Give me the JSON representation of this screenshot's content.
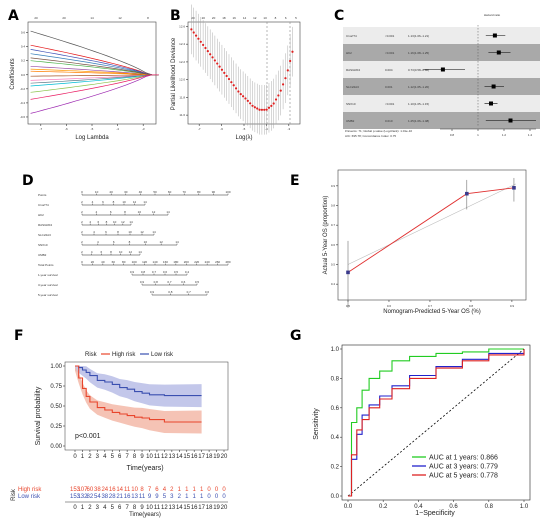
{
  "panels": {
    "A": {
      "label": "A",
      "xlabel": "Log Lambda",
      "ylabel": "Coefficients",
      "top_ticks": [
        "20",
        "20",
        "14",
        "12",
        "8"
      ],
      "x_ticks": [
        "-7",
        "-6",
        "-5",
        "-4",
        "-3"
      ],
      "y_ticks": [
        "0.6",
        "0.4",
        "0.2",
        "0.0",
        "-0.2",
        "-0.4",
        "-0.6"
      ]
    },
    "B": {
      "label": "B",
      "xlabel": "Log(λ)",
      "ylabel": "Partial Likelihood Deviance",
      "top_ticks": [
        "20",
        "20",
        "20",
        "18",
        "16",
        "14",
        "12",
        "10",
        "8",
        "6",
        "5"
      ],
      "x_ticks": [
        "-7",
        "-6",
        "-5",
        "-4",
        "-3"
      ],
      "y_ticks": [
        "12.6",
        "12.4",
        "12.2",
        "12.0",
        "11.8",
        "11.6"
      ]
    },
    "C": {
      "label": "C",
      "title": "Hazard ratio",
      "rows": [
        {
          "gene": "C1orf74",
          "p": "<0.001",
          "hr": "1.13(1.06–1.21)"
        },
        {
          "gene": "HK2",
          "p": "<0.001",
          "hr": "1.16(1.08–1.25)"
        },
        {
          "gene": "RASGRF2",
          "p": "0.004",
          "hr": "0.73(0.58–0.90)"
        },
        {
          "gene": "SLC22A3",
          "p": "0.001",
          "hr": "1.12(1.05–1.20)"
        },
        {
          "gene": "SNX10",
          "p": "<0.001",
          "hr": "1.10(1.05–1.15)"
        },
        {
          "gene": "UMB2",
          "p": "0.010",
          "hr": "1.25(1.06–1.48)"
        }
      ],
      "footer1": "# Events: 71; Global p-value (Log-Rank): 1.01e-10",
      "footer2": "AIC: 695.78; Concordance Index: 0.75",
      "x_ticks": [
        "0.8",
        "1",
        "1.2",
        "1.4"
      ]
    },
    "D": {
      "label": "D",
      "rows": [
        "Points",
        "C1orf74",
        "HK2",
        "RASGRF2",
        "SLC22A3",
        "SNX10",
        "UMB2",
        "Total Points",
        "1-year survival",
        "3-year survival",
        "5-year survival"
      ],
      "points_ticks": [
        "0",
        "10",
        "20",
        "30",
        "40",
        "50",
        "60",
        "70",
        "80",
        "90",
        "100"
      ],
      "total_ticks": [
        "0",
        "20",
        "40",
        "60",
        "80",
        "100",
        "120",
        "140",
        "160",
        "180",
        "200",
        "220",
        "240",
        "260",
        "280"
      ]
    },
    "E": {
      "label": "E",
      "xlabel": "Nomogram-Predicted 5-Year OS (%)",
      "ylabel": "Actual 5-Year OS (proportion)",
      "x_ticks": [
        "0.5",
        "0.6",
        "0.7",
        "0.8",
        "0.9"
      ],
      "y_ticks": [
        "0.4",
        "0.5",
        "0.6",
        "0.7",
        "0.8",
        "0.9"
      ]
    },
    "F": {
      "label": "F",
      "ylabel": "Survival probability",
      "xlabel": "Time(years)",
      "legend_title": "Risk",
      "legend_high": "High risk",
      "legend_low": "Low risk",
      "pval": "p<0.001",
      "x_ticks": [
        "0",
        "1",
        "2",
        "3",
        "4",
        "5",
        "6",
        "7",
        "8",
        "9",
        "10",
        "11",
        "12",
        "13",
        "14",
        "15",
        "16",
        "17",
        "18",
        "19",
        "20"
      ],
      "y_ticks": [
        "0.00",
        "0.25",
        "0.50",
        "0.75",
        "1.00"
      ],
      "risk_label": "Risk",
      "risk_high_label": "High risk",
      "risk_low_label": "Low risk",
      "risk_high": [
        "153",
        "107",
        "60",
        "38",
        "24",
        "16",
        "14",
        "11",
        "10",
        "8",
        "7",
        "6",
        "4",
        "2",
        "1",
        "1",
        "1",
        "1",
        "0",
        "0",
        "0"
      ],
      "risk_low": [
        "153",
        "132",
        "82",
        "54",
        "38",
        "28",
        "21",
        "16",
        "13",
        "11",
        "9",
        "9",
        "5",
        "3",
        "2",
        "1",
        "1",
        "1",
        "0",
        "0",
        "0"
      ],
      "risk_xlabel": "Time(years)"
    },
    "G": {
      "label": "G",
      "ylabel": "Sensitivity",
      "xlabel": "1−Specificity",
      "x_ticks": [
        "0.0",
        "0.2",
        "0.4",
        "0.6",
        "0.8",
        "1.0"
      ],
      "y_ticks": [
        "0.0",
        "0.2",
        "0.4",
        "0.6",
        "0.8",
        "1.0"
      ],
      "legend": [
        {
          "text": "AUC at 1 years: 0.866",
          "color": "#22cc22"
        },
        {
          "text": "AUC at 3 years: 0.779",
          "color": "#2222cc"
        },
        {
          "text": "AUC at 5 years: 0.778",
          "color": "#dd2222"
        }
      ]
    }
  },
  "colors": {
    "high": "#e8452c",
    "low": "#3a4fb0",
    "high_fill": "#f3b9a8",
    "low_fill": "#b8bde6",
    "cv_red": "#e02020",
    "grey_band": "#a9a9a9"
  },
  "chart_data": [
    {
      "type": "line",
      "panel": "A",
      "title": "",
      "xlabel": "Log Lambda",
      "ylabel": "Coefficients",
      "xlim": [
        -7.5,
        -2.5
      ],
      "ylim": [
        -0.7,
        0.75
      ]
    },
    {
      "type": "scatter",
      "panel": "B",
      "title": "",
      "xlabel": "Log(λ)",
      "ylabel": "Partial Likelihood Deviance",
      "x": [
        -7.3,
        -7.0,
        -6.7,
        -6.4,
        -6.1,
        -5.8,
        -5.5,
        -5.2,
        -4.9,
        -4.6,
        -4.3,
        -4.0,
        -3.7,
        -3.4,
        -3.1,
        -2.8
      ],
      "y": [
        12.55,
        12.45,
        12.35,
        12.25,
        12.15,
        12.05,
        11.95,
        11.85,
        11.78,
        11.7,
        11.66,
        11.66,
        11.72,
        11.85,
        12.05,
        12.35
      ]
    },
    {
      "type": "scatter",
      "panel": "C",
      "title": "Hazard ratio",
      "categories": [
        "C1orf74",
        "HK2",
        "RASGRF2",
        "SLC22A3",
        "SNX10",
        "UMB2"
      ],
      "values": [
        1.13,
        1.16,
        0.73,
        1.12,
        1.1,
        1.25
      ]
    },
    {
      "type": "line",
      "panel": "E",
      "title": "",
      "x": [
        0.5,
        0.79,
        0.905
      ],
      "y": [
        0.46,
        0.86,
        0.89
      ]
    },
    {
      "type": "line",
      "panel": "F",
      "title": "",
      "ylabel": "Survival probability",
      "xlabel": "Time(years)",
      "series": [
        {
          "name": "High risk",
          "x": [
            0,
            0.5,
            1,
            1.5,
            2,
            3,
            4,
            5,
            6,
            7,
            8,
            9,
            10,
            12,
            17
          ],
          "values": [
            1.0,
            0.85,
            0.72,
            0.62,
            0.55,
            0.48,
            0.45,
            0.42,
            0.4,
            0.38,
            0.36,
            0.35,
            0.33,
            0.3,
            0.3
          ]
        },
        {
          "name": "Low risk",
          "x": [
            0,
            0.5,
            1,
            1.5,
            2,
            3,
            4,
            5,
            6,
            7,
            8,
            9,
            10,
            12,
            17
          ],
          "values": [
            1.0,
            0.98,
            0.95,
            0.92,
            0.88,
            0.82,
            0.8,
            0.77,
            0.73,
            0.71,
            0.68,
            0.66,
            0.64,
            0.63,
            0.63
          ]
        }
      ]
    },
    {
      "type": "line",
      "panel": "G",
      "title": "",
      "ylabel": "Sensitivity",
      "xlabel": "1−Specificity",
      "xlim": [
        0,
        1
      ],
      "ylim": [
        0,
        1
      ],
      "series": [
        {
          "name": "AUC at 1 years: 0.866",
          "x": [
            0,
            0.02,
            0.05,
            0.08,
            0.12,
            0.18,
            0.25,
            0.35,
            0.5,
            0.65,
            0.8,
            1
          ],
          "values": [
            0,
            0.5,
            0.6,
            0.72,
            0.8,
            0.85,
            0.92,
            0.95,
            0.97,
            0.98,
            1,
            1
          ]
        },
        {
          "name": "AUC at 3 years: 0.779",
          "x": [
            0,
            0.02,
            0.05,
            0.08,
            0.12,
            0.18,
            0.25,
            0.35,
            0.5,
            0.65,
            0.8,
            1
          ],
          "values": [
            0,
            0.25,
            0.42,
            0.55,
            0.62,
            0.68,
            0.75,
            0.82,
            0.88,
            0.93,
            0.97,
            1
          ]
        },
        {
          "name": "AUC at 5 years: 0.778",
          "x": [
            0,
            0.02,
            0.05,
            0.08,
            0.12,
            0.18,
            0.25,
            0.35,
            0.5,
            0.65,
            0.8,
            1
          ],
          "values": [
            0,
            0.28,
            0.45,
            0.52,
            0.6,
            0.66,
            0.73,
            0.8,
            0.87,
            0.92,
            0.96,
            1
          ]
        }
      ]
    }
  ]
}
